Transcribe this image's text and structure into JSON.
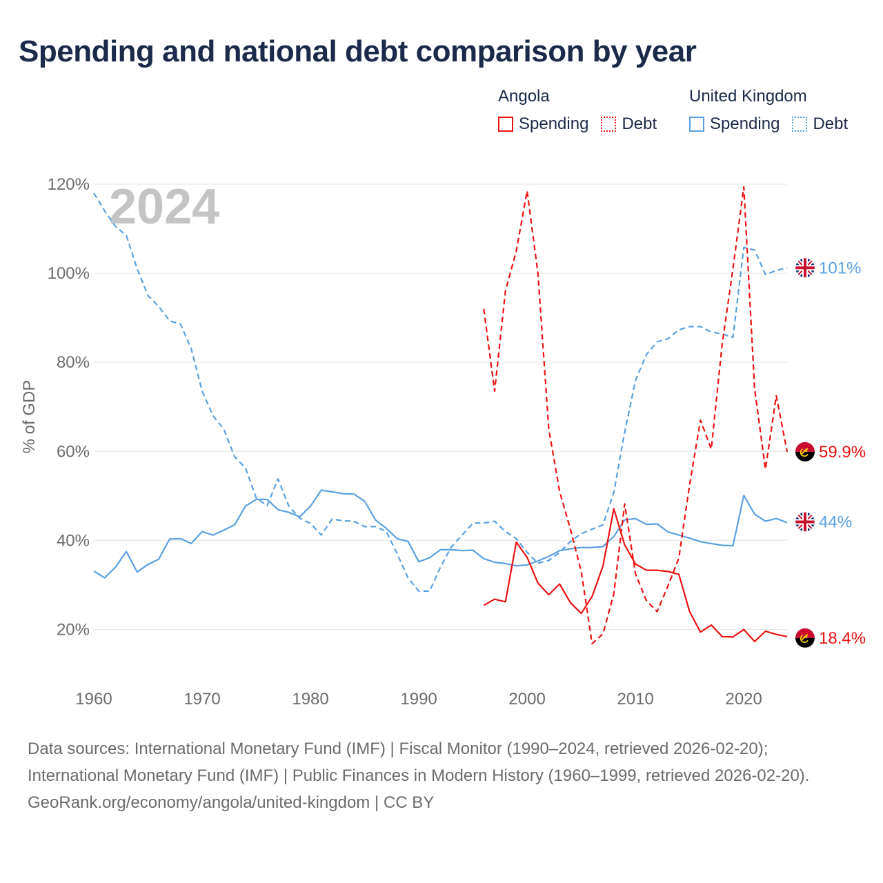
{
  "title": "Spending and national debt comparison by year",
  "legend": {
    "angola": {
      "title": "Angola",
      "spending": "Spending",
      "debt": "Debt"
    },
    "uk": {
      "title": "United Kingdom",
      "spending": "Spending",
      "debt": "Debt"
    }
  },
  "colors": {
    "angola": "#ee1111",
    "uk": "#5aa0e0",
    "grid": "#e6e6e6",
    "axis_text": "#6b6b6b",
    "watermark": "#c4c4c4",
    "title": "#1b2a4a"
  },
  "footer": {
    "sources": "Data sources: International Monetary Fund (IMF) | Fiscal Monitor (1990–2024, retrieved 2026-02-20); International Monetary Fund (IMF) | Public Finances in Modern History (1960–1999, retrieved 2026-02-20).",
    "credit": "GeoRank.org/economy/angola/united-kingdom | CC BY"
  },
  "chart_data": {
    "type": "line",
    "ylabel": "% of GDP",
    "xlabel": "",
    "year_label": "2024",
    "xlim": [
      1960,
      2024
    ],
    "ylim": [
      10,
      120
    ],
    "yticks": [
      20,
      40,
      60,
      80,
      100,
      120
    ],
    "ytick_labels": [
      "20%",
      "40%",
      "60%",
      "80%",
      "100%",
      "120%"
    ],
    "xticks": [
      1960,
      1970,
      1980,
      1990,
      2000,
      2010,
      2020
    ],
    "xtick_labels": [
      "1960",
      "1970",
      "1980",
      "1990",
      "2000",
      "2010",
      "2020"
    ],
    "series": [
      {
        "key": "uk_debt",
        "name": "United Kingdom Debt",
        "country": "uk",
        "style": "dashed",
        "end_label": "101%",
        "x": [
          1960,
          1961,
          1962,
          1963,
          1964,
          1965,
          1966,
          1967,
          1968,
          1969,
          1970,
          1971,
          1972,
          1973,
          1974,
          1975,
          1976,
          1977,
          1978,
          1979,
          1980,
          1981,
          1982,
          1983,
          1984,
          1985,
          1986,
          1987,
          1988,
          1989,
          1990,
          1991,
          1992,
          1993,
          1994,
          1995,
          1996,
          1997,
          1998,
          1999,
          2000,
          2001,
          2002,
          2003,
          2004,
          2005,
          2006,
          2007,
          2008,
          2009,
          2010,
          2011,
          2012,
          2013,
          2014,
          2015,
          2016,
          2017,
          2018,
          2019,
          2020,
          2021,
          2022,
          2023,
          2024
        ],
        "y": [
          118,
          114,
          110.5,
          108.5,
          101,
          95,
          92.5,
          89.3,
          88.6,
          83,
          73.5,
          68,
          65,
          58.8,
          56.3,
          49.5,
          47.8,
          53.8,
          47.7,
          45,
          43.8,
          41.2,
          44.8,
          44.4,
          44.3,
          43.1,
          43.1,
          42,
          37,
          31.6,
          28.6,
          28.6,
          34,
          38.5,
          41.2,
          43.9,
          43.9,
          44.3,
          42,
          40.4,
          37.3,
          34.9,
          35.5,
          37.3,
          39.8,
          41.5,
          42.5,
          43.5,
          50.8,
          64.3,
          75.9,
          81.7,
          84.6,
          85.3,
          87.3,
          88,
          88,
          86.8,
          86.4,
          85.6,
          105.8,
          105.2,
          99.7,
          100.6,
          101.2
        ]
      },
      {
        "key": "uk_spending",
        "name": "United Kingdom Spending",
        "country": "uk",
        "style": "solid",
        "end_label": "44%",
        "x": [
          1960,
          1961,
          1962,
          1963,
          1964,
          1965,
          1966,
          1967,
          1968,
          1969,
          1970,
          1971,
          1972,
          1973,
          1974,
          1975,
          1976,
          1977,
          1978,
          1979,
          1980,
          1981,
          1982,
          1983,
          1984,
          1985,
          1986,
          1987,
          1988,
          1989,
          1990,
          1991,
          1992,
          1993,
          1994,
          1995,
          1996,
          1997,
          1998,
          1999,
          2000,
          2001,
          2002,
          2003,
          2004,
          2005,
          2006,
          2007,
          2008,
          2009,
          2010,
          2011,
          2012,
          2013,
          2014,
          2015,
          2016,
          2017,
          2018,
          2019,
          2020,
          2021,
          2022,
          2023,
          2024
        ],
        "y": [
          33.1,
          31.6,
          34,
          37.5,
          32.9,
          34.6,
          35.8,
          40.3,
          40.4,
          39.3,
          42,
          41.2,
          42.3,
          43.5,
          47.7,
          49.2,
          49.2,
          46.9,
          46.3,
          45.3,
          47.7,
          51.3,
          50.9,
          50.5,
          50.4,
          48.8,
          44.6,
          42.7,
          40.4,
          39.8,
          35.2,
          36.1,
          37.9,
          37.9,
          37.7,
          37.8,
          35.9,
          35.1,
          34.8,
          34.3,
          34.5,
          35.4,
          36.4,
          37.7,
          38.1,
          38.4,
          38.4,
          38.6,
          40.9,
          44.6,
          44.9,
          43.6,
          43.7,
          41.9,
          41.2,
          40.5,
          39.7,
          39.3,
          38.9,
          38.8,
          50.1,
          45.9,
          44.3,
          44.9,
          44
        ]
      },
      {
        "key": "angola_debt",
        "name": "Angola Debt",
        "country": "angola",
        "style": "dashed",
        "end_label": "59.9%",
        "x": [
          1996,
          1997,
          1998,
          1999,
          2000,
          2001,
          2002,
          2003,
          2004,
          2005,
          2006,
          2007,
          2008,
          2009,
          2010,
          2011,
          2012,
          2013,
          2014,
          2015,
          2016,
          2017,
          2018,
          2019,
          2020,
          2021,
          2022,
          2023,
          2024
        ],
        "y": [
          92,
          73.5,
          96,
          105,
          118.5,
          100,
          65,
          51,
          42.5,
          33,
          16.8,
          19,
          28,
          48.2,
          32.5,
          26.5,
          24,
          29.8,
          36,
          52.5,
          67,
          60.5,
          84,
          101,
          119.4,
          74,
          56,
          72.5,
          59.9
        ]
      },
      {
        "key": "angola_spending",
        "name": "Angola Spending",
        "country": "angola",
        "style": "solid",
        "end_label": "18.4%",
        "x": [
          1996,
          1997,
          1998,
          1999,
          2000,
          2001,
          2002,
          2003,
          2004,
          2005,
          2006,
          2007,
          2008,
          2009,
          2010,
          2011,
          2012,
          2013,
          2014,
          2015,
          2016,
          2017,
          2018,
          2019,
          2020,
          2021,
          2022,
          2023,
          2024
        ],
        "y": [
          25.4,
          26.8,
          26.2,
          39.6,
          36.2,
          30.4,
          27.8,
          30.2,
          26,
          23.6,
          27.4,
          34.2,
          47.1,
          39,
          34.7,
          33.3,
          33.3,
          33,
          32.4,
          24,
          19.4,
          21,
          18.4,
          18.3,
          20,
          17.3,
          19.6,
          18.9,
          18.4
        ]
      }
    ]
  }
}
